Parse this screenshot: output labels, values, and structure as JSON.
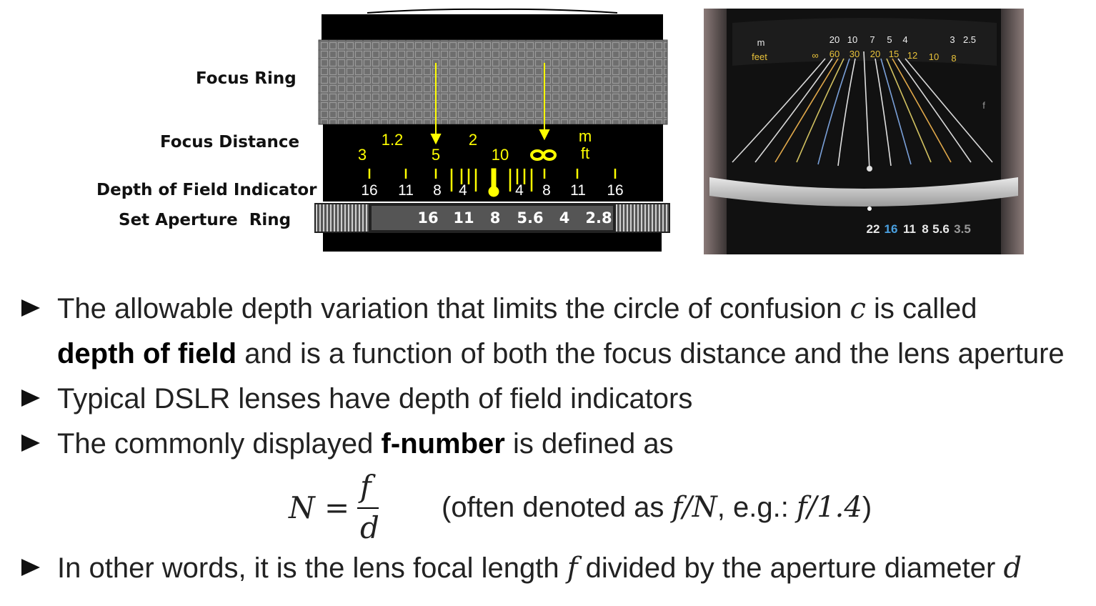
{
  "diagram": {
    "labels": {
      "focus_ring": "Focus Ring",
      "focus_distance": "Focus Distance",
      "dof_indicator": "Depth of Field Indicator",
      "aperture_ring": "Set Aperture  Ring"
    },
    "distance_scale": {
      "top_row": [
        "1.2",
        "2"
      ],
      "bottom_row": [
        "3",
        "5",
        "10"
      ],
      "units_top": "m",
      "units_bottom": "ft"
    },
    "dof_scale": [
      "16",
      "11",
      "8",
      "4",
      "4",
      "8",
      "11",
      "16"
    ],
    "aperture_values": [
      "16",
      "11",
      "8",
      "5.6",
      "4",
      "2.8"
    ],
    "colors": {
      "yellow": "#ffff00",
      "ring_gray": "#777777",
      "body": "#000000"
    }
  },
  "photo": {
    "top_units": [
      "m",
      "feet"
    ],
    "distance_m": [
      "20",
      "10",
      "7",
      "5",
      "4",
      "3",
      "2.5"
    ],
    "distance_ft": [
      "∞",
      "60",
      "30",
      "20",
      "15",
      "12",
      "10",
      "8"
    ],
    "aperture_values": [
      "22",
      "16",
      "11",
      "8",
      "5.6",
      "3.5"
    ],
    "side_text": "f"
  },
  "bullets": {
    "b1_part1": "The allowable depth variation that limits the circle of confusion ",
    "b1_var": "c",
    "b1_part2": " is called",
    "b1_bold": "depth of field",
    "b1_part3": " and is a function of both the focus distance and the lens aperture",
    "b2": "Typical DSLR lenses have depth of field indicators",
    "b3_part1": "The commonly displayed ",
    "b3_bold": "f-number",
    "b3_part2": " is defined as",
    "formula": {
      "lhs": "N",
      "eq": "=",
      "num": "f",
      "den": "d",
      "note_open": "(often denoted as ",
      "note_expr1": "f/N",
      "note_mid": ", e.g.: ",
      "note_expr2": "f/1.4",
      "note_close": ")"
    },
    "b4_part1": "In other words, it is the lens focal length ",
    "b4_var1": "f",
    "b4_part2": " divided by the aperture diameter ",
    "b4_var2": "d"
  }
}
